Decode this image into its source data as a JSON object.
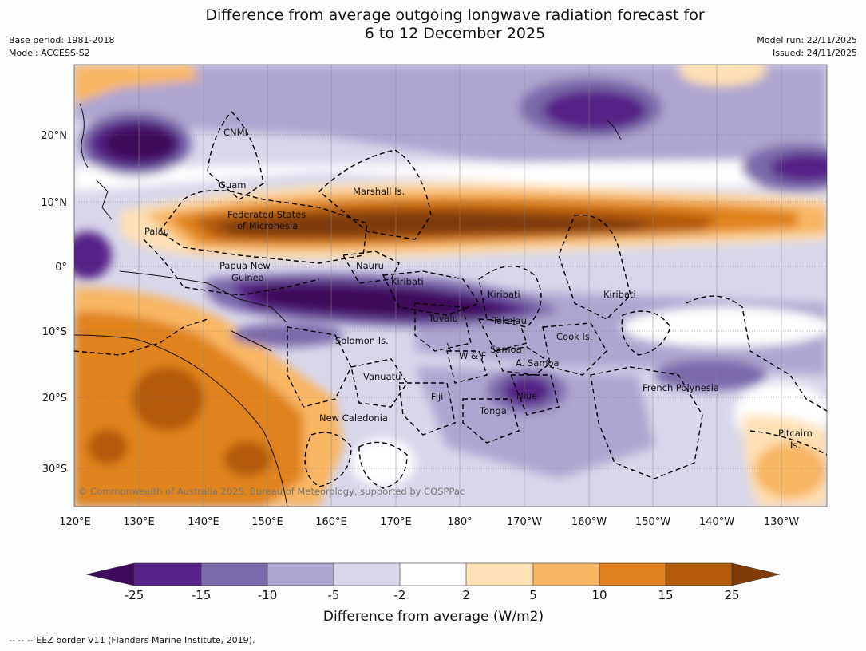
{
  "title": {
    "line1": "Difference from average outgoing longwave radiation forecast for",
    "line2": "6 to 12 December 2025"
  },
  "meta_left": {
    "base_period": "Base period: 1981-2018",
    "model": "Model: ACCESS-S2"
  },
  "meta_right": {
    "model_run": "Model run: 22/11/2025",
    "issued": "Issued: 24/11/2025"
  },
  "map": {
    "lon_labels": [
      "120°E",
      "130°E",
      "140°E",
      "150°E",
      "160°E",
      "170°E",
      "180°",
      "170°W",
      "160°W",
      "150°W",
      "140°W",
      "130°W"
    ],
    "lat_labels": [
      "20°N",
      "10°N",
      "0°",
      "10°S",
      "20°S",
      "30°S"
    ],
    "places": {
      "cnmi": "CNMI",
      "guam": "Guam",
      "marshall": "Marshall Is.",
      "fsm1": "Federated States",
      "fsm2": "of Micronesia",
      "palau": "Palau",
      "png1": "Papua New",
      "png2": "Guinea",
      "nauru": "Nauru",
      "kiribati_w": "Kiribati",
      "kiribati_c": "Kiribati",
      "kiribati_e": "Kiribati",
      "tuvalu": "Tuvalu",
      "tokelau": "Tokelau",
      "solomon": "Solomon Is.",
      "wf": "W & F",
      "samoa": "Samoa",
      "asamoa": "A. Samoa",
      "cook": "Cook Is.",
      "vanuatu": "Vanuatu",
      "fiji": "Fiji",
      "niue": "Niue",
      "tonga": "Tonga",
      "fp": "French Polynesia",
      "pitcairn1": "Pitcairn",
      "pitcairn2": "Is.",
      "newcal": "New Caledonia"
    },
    "copyright": "© Commonwealth of Australia 2025, Bureau of Meteorology, supported by COSPPac"
  },
  "colorbar": {
    "ticks": [
      "-25",
      "-15",
      "-10",
      "-5",
      "-2",
      "2",
      "5",
      "10",
      "15",
      "25"
    ],
    "colors": {
      "lt25": "#3d0c5c",
      "m25": "#552288",
      "m15": "#7b6aab",
      "m10": "#aea6cf",
      "m5": "#d8d7ea",
      "m2": "#ffffff",
      "p2": "#fde0b3",
      "p5": "#f9b663",
      "p10": "#e0831e",
      "p15": "#b35a0b",
      "gt25": "#7f3b08"
    },
    "title": "Difference from average (W/m2)"
  },
  "footer": "--  --  -- EEZ border V11 (Flanders Marine Institute, 2019)."
}
